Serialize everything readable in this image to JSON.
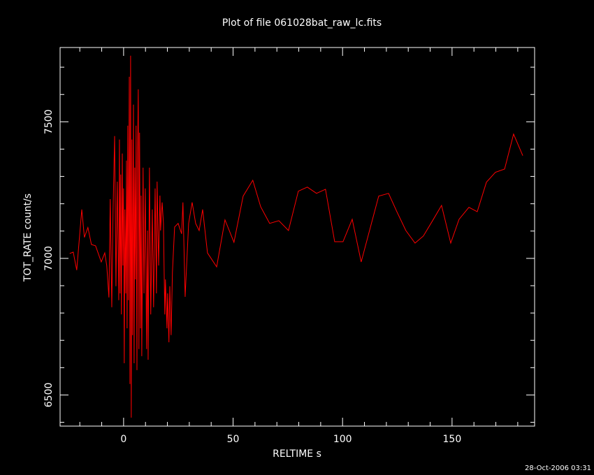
{
  "chart_data": {
    "type": "line",
    "title": "Plot of file 061028bat_raw_lc.fits",
    "x_label": "RELTIME  s",
    "y_label": "TOT_RATE  count/s",
    "footer": "28-Oct-2006 03:31",
    "xlim": [
      -29,
      187.7
    ],
    "ylim": [
      6386,
      7772
    ],
    "xticks": [
      0,
      50,
      100,
      150
    ],
    "yticks": [
      6500,
      7000,
      7500
    ],
    "xminorticks": [
      -20,
      -10,
      10,
      20,
      30,
      40,
      60,
      70,
      80,
      90,
      110,
      120,
      130,
      140,
      160,
      170,
      180
    ],
    "yminorticks": [
      6400,
      6600,
      6700,
      6800,
      6900,
      7100,
      7200,
      7300,
      7400,
      7600,
      7700
    ],
    "x": [
      -24.6,
      -23,
      -21.4,
      -19.1,
      -17.9,
      -16.3,
      -14.7,
      -12.8,
      -10.2,
      -8.6,
      -7.7,
      -6.7,
      -6.1,
      -5.4,
      -4.8,
      -4.1,
      -3.5,
      -2.9,
      -2.2,
      -1.9,
      -1.6,
      -1.3,
      -1.0,
      -0.6,
      -0.3,
      0,
      0.3,
      0.6,
      1.0,
      1.3,
      1.6,
      1.9,
      2.2,
      2.6,
      2.9,
      3.2,
      3.5,
      3.8,
      4.1,
      4.5,
      4.8,
      5.1,
      5.4,
      5.7,
      6.1,
      6.4,
      6.7,
      7.0,
      7.3,
      7.7,
      8.0,
      8.3,
      8.9,
      9.3,
      9.9,
      10.5,
      10.9,
      11.2,
      11.8,
      12.4,
      13.1,
      13.7,
      14.4,
      15.0,
      15.3,
      16.0,
      16.6,
      16.9,
      17.6,
      18.2,
      18.8,
      19.1,
      19.8,
      20.1,
      20.7,
      21.1,
      21.7,
      22.3,
      23.3,
      24.9,
      26.5,
      27.1,
      28.1,
      29.7,
      31.3,
      32.9,
      34.5,
      36.1,
      38.3,
      42.5,
      46.3,
      50.4,
      54.6,
      59.0,
      62.6,
      66.7,
      70.9,
      75.3,
      79.8,
      83.9,
      88.1,
      92.2,
      96.4,
      100.2,
      104.4,
      108.5,
      116.5,
      121.0,
      124.8,
      128.9,
      133.1,
      136.9,
      141.1,
      145.2,
      149.4,
      153.2,
      157.7,
      161.5,
      165.7,
      169.8,
      174.0,
      178.1,
      182.3
    ],
    "series": [
      {
        "color": "#ff0000",
        "values": [
          7018,
          7023,
          6957,
          7179,
          7077,
          7113,
          7051,
          7046,
          6987,
          7020,
          6974,
          6857,
          7217,
          6821,
          7179,
          7448,
          6898,
          7281,
          6847,
          7435,
          6872,
          7307,
          6795,
          7384,
          6974,
          7256,
          6616,
          7179,
          6872,
          7358,
          6744,
          7486,
          6847,
          7665,
          6540,
          7742,
          6417,
          7435,
          6719,
          7563,
          6616,
          7332,
          6923,
          7486,
          6591,
          7384,
          7619,
          6668,
          7460,
          6744,
          7230,
          6642,
          7332,
          6872,
          7256,
          6668,
          7102,
          6629,
          7332,
          6795,
          7179,
          6821,
          7256,
          6872,
          7281,
          6974,
          7230,
          7102,
          7205,
          7128,
          6795,
          6923,
          6744,
          6872,
          6693,
          6898,
          6719,
          6949,
          7115,
          7128,
          7090,
          7205,
          6859,
          7128,
          7205,
          7128,
          7102,
          7179,
          7020,
          6969,
          7141,
          7059,
          7228,
          7286,
          7189,
          7128,
          7138,
          7102,
          7246,
          7261,
          7238,
          7253,
          7061,
          7061,
          7143,
          6987,
          7228,
          7238,
          7171,
          7102,
          7056,
          7082,
          7138,
          7194,
          7056,
          7143,
          7187,
          7171,
          7279,
          7315,
          7327,
          7455,
          7376
        ]
      }
    ]
  }
}
